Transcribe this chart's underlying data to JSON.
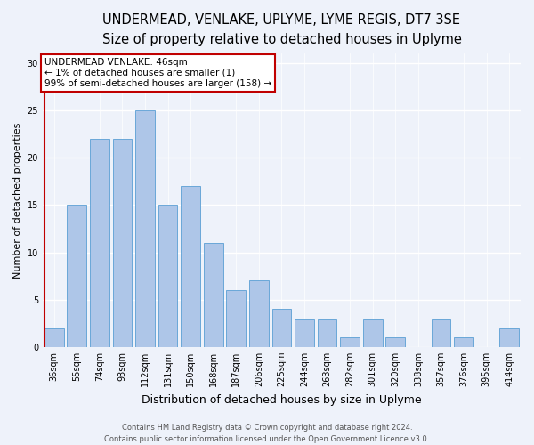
{
  "title_line1": "UNDERMEAD, VENLAKE, UPLYME, LYME REGIS, DT7 3SE",
  "title_line2": "Size of property relative to detached houses in Uplyme",
  "xlabel": "Distribution of detached houses by size in Uplyme",
  "ylabel": "Number of detached properties",
  "categories": [
    "36sqm",
    "55sqm",
    "74sqm",
    "93sqm",
    "112sqm",
    "131sqm",
    "150sqm",
    "168sqm",
    "187sqm",
    "206sqm",
    "225sqm",
    "244sqm",
    "263sqm",
    "282sqm",
    "301sqm",
    "320sqm",
    "338sqm",
    "357sqm",
    "376sqm",
    "395sqm",
    "414sqm"
  ],
  "values": [
    2,
    15,
    22,
    22,
    25,
    15,
    17,
    11,
    6,
    7,
    4,
    3,
    3,
    1,
    3,
    1,
    0,
    3,
    1,
    0,
    2
  ],
  "bar_color": "#aec6e8",
  "bar_edge_color": "#5a9fd4",
  "highlight_color": "#c00000",
  "annotation_box_text": "UNDERMEAD VENLAKE: 46sqm\n← 1% of detached houses are smaller (1)\n99% of semi-detached houses are larger (158) →",
  "ylim": [
    0,
    31
  ],
  "yticks": [
    0,
    5,
    10,
    15,
    20,
    25,
    30
  ],
  "footer_line1": "Contains HM Land Registry data © Crown copyright and database right 2024.",
  "footer_line2": "Contains public sector information licensed under the Open Government Licence v3.0.",
  "background_color": "#eef2fa",
  "grid_color": "#ffffff",
  "title_fontsize": 10.5,
  "subtitle_fontsize": 9.5,
  "tick_fontsize": 7,
  "ylabel_fontsize": 8,
  "xlabel_fontsize": 9,
  "footer_fontsize": 6,
  "annotation_fontsize": 7.5
}
